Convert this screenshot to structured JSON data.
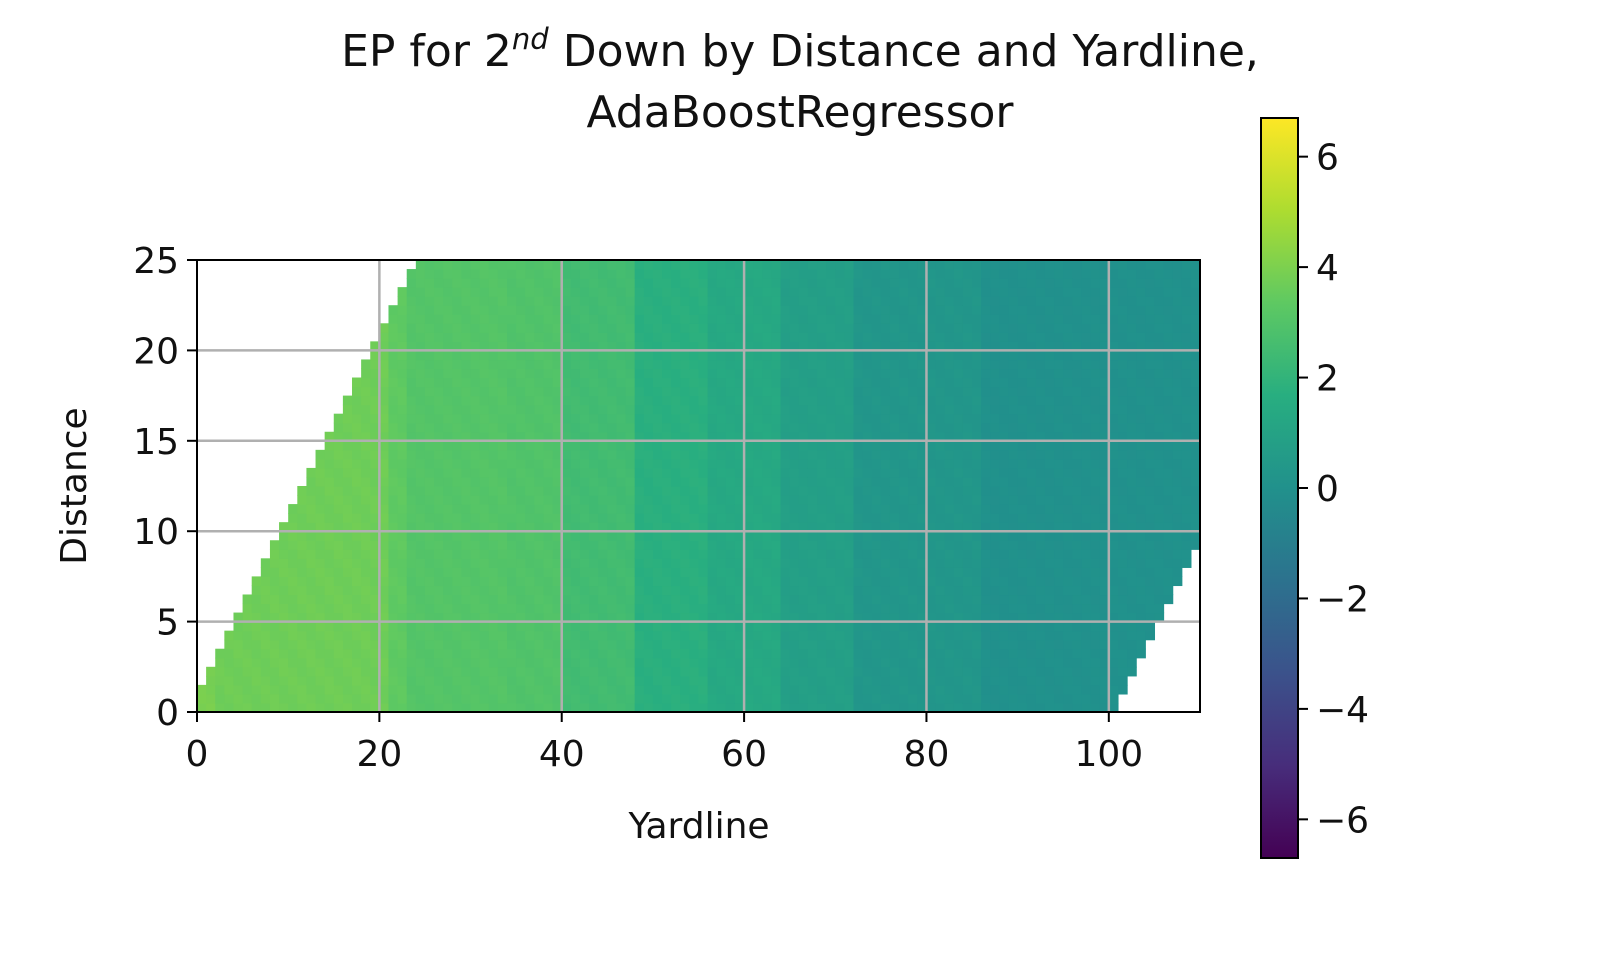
{
  "chart_data": {
    "type": "heatmap",
    "title": {
      "line1_prefix": "EP for 2",
      "line1_superscript": "nd",
      "line1_suffix": " Down by Distance and Yardline,",
      "line2": "AdaBoostRegressor"
    },
    "xlabel": "Yardline",
    "ylabel": "Distance",
    "xlim": [
      0,
      110
    ],
    "ylim": [
      0,
      25
    ],
    "xticks": [
      0,
      20,
      40,
      60,
      80,
      100
    ],
    "yticks": [
      0,
      5,
      10,
      15,
      20,
      25
    ],
    "grid": true,
    "colormap": "viridis",
    "colorbar": {
      "range": [
        -6.7,
        6.7
      ],
      "ticks": [
        6,
        4,
        2,
        0,
        -2,
        -4,
        -6
      ],
      "tick_labels": [
        "6",
        "4",
        "2",
        "0",
        "−2",
        "−4",
        "−6"
      ]
    },
    "valid_region": {
      "description": "Cells drawn only where distance <= yardline + 1 and yardline <= distance + 100",
      "max_distance_offset": 1,
      "max_yardline_offset": 100
    },
    "ep_by_yardline_bands": [
      {
        "from": 0,
        "to": 2,
        "ep": 3.9
      },
      {
        "from": 2,
        "to": 21,
        "ep": 3.7
      },
      {
        "from": 21,
        "to": 23,
        "ep": 3.35
      },
      {
        "from": 23,
        "to": 34,
        "ep": 3.05
      },
      {
        "from": 34,
        "to": 40,
        "ep": 2.95
      },
      {
        "from": 40,
        "to": 48,
        "ep": 2.5
      },
      {
        "from": 48,
        "to": 56,
        "ep": 1.75
      },
      {
        "from": 56,
        "to": 64,
        "ep": 1.35
      },
      {
        "from": 64,
        "to": 72,
        "ep": 0.8
      },
      {
        "from": 72,
        "to": 86,
        "ep": 0.3
      },
      {
        "from": 86,
        "to": 110,
        "ep": 0.0
      }
    ]
  }
}
